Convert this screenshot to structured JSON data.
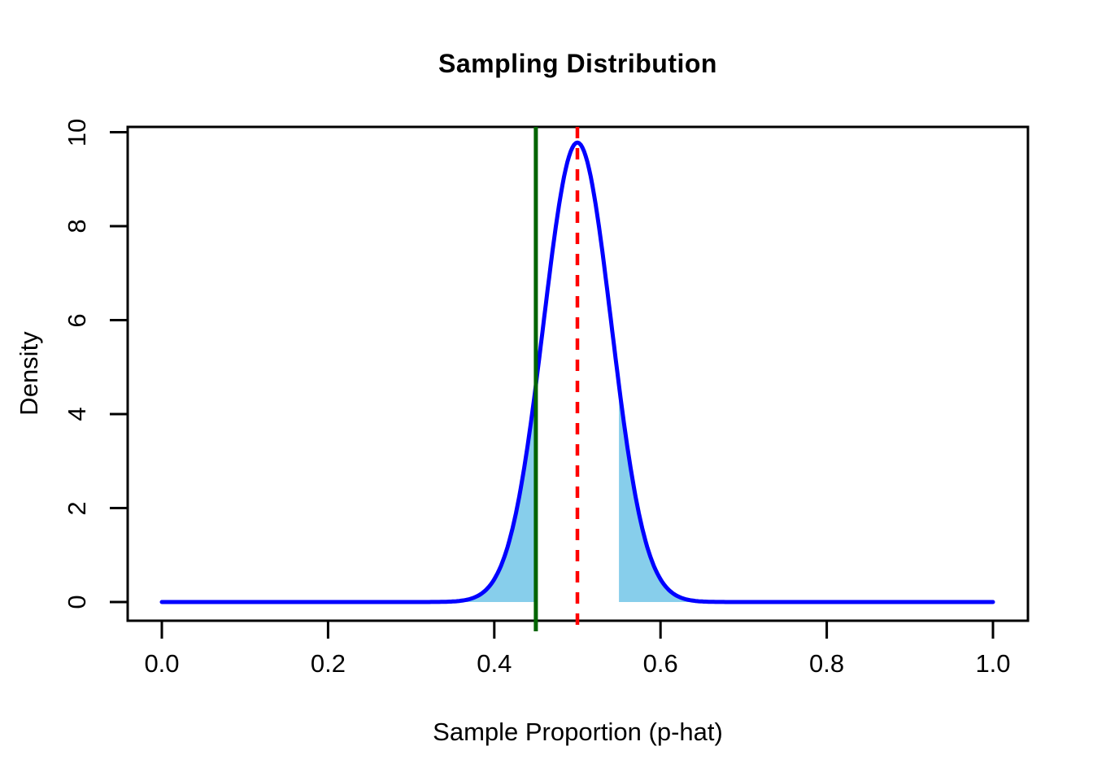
{
  "title": "Sampling Distribution",
  "chart_data": {
    "type": "area",
    "title": "Sampling Distribution",
    "xlabel": "Sample Proportion (p-hat)",
    "ylabel": "Density",
    "xlim": [
      0,
      1
    ],
    "ylim": [
      0,
      10
    ],
    "grid": "off",
    "legend": "none",
    "x_ticks": [
      "0.0",
      "0.2",
      "0.4",
      "0.6",
      "0.8",
      "1.0"
    ],
    "x_tick_values": [
      0,
      0.2,
      0.4,
      0.6,
      0.8,
      1.0
    ],
    "y_ticks": [
      "0",
      "2",
      "4",
      "6",
      "8",
      "10"
    ],
    "y_tick_values": [
      0,
      2,
      4,
      6,
      8,
      10
    ],
    "distribution": {
      "kind": "normal",
      "mean": 0.5,
      "sd": 0.0408,
      "peak_density": 9.78,
      "x_range": [
        0,
        1
      ]
    },
    "curve_points": [
      [
        0.3,
        0.0
      ],
      [
        0.32,
        0.001
      ],
      [
        0.34,
        0.004
      ],
      [
        0.36,
        0.027
      ],
      [
        0.38,
        0.129
      ],
      [
        0.4,
        0.485
      ],
      [
        0.42,
        1.43
      ],
      [
        0.44,
        3.313
      ],
      [
        0.46,
        6.049
      ],
      [
        0.48,
        8.673
      ],
      [
        0.5,
        9.78
      ],
      [
        0.52,
        8.673
      ],
      [
        0.54,
        6.049
      ],
      [
        0.56,
        3.313
      ],
      [
        0.58,
        1.43
      ],
      [
        0.6,
        0.485
      ],
      [
        0.62,
        0.129
      ],
      [
        0.64,
        0.027
      ],
      [
        0.66,
        0.004
      ],
      [
        0.68,
        0.001
      ],
      [
        0.7,
        0.0
      ]
    ],
    "vertical_lines": [
      {
        "x": 0.45,
        "color": "#006400",
        "style": "solid",
        "name": "green-reference-line"
      },
      {
        "x": 0.5,
        "color": "#FF0000",
        "style": "dashed",
        "name": "red-center-line"
      }
    ],
    "shaded_regions": [
      {
        "from": 0.0,
        "to": 0.45,
        "color": "#87CEEB",
        "name": "left-tail-shading"
      },
      {
        "from": 0.55,
        "to": 1.0,
        "color": "#87CEEB",
        "name": "right-tail-shading"
      }
    ],
    "curve_color": "#0000FF",
    "axis_color": "#000000",
    "background_color": "#FFFFFF"
  }
}
